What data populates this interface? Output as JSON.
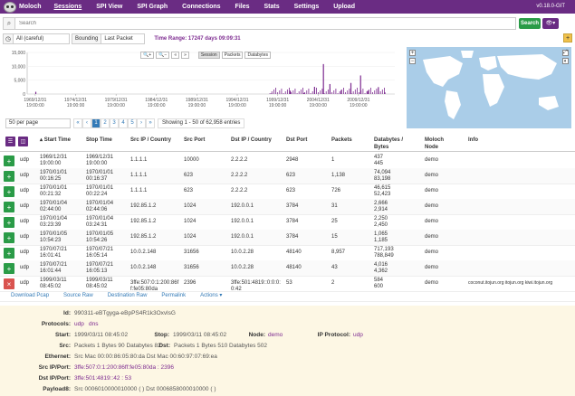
{
  "nav": {
    "brand": "Moloch",
    "items": [
      "Sessions",
      "SPI View",
      "SPI Graph",
      "Connections",
      "Files",
      "Stats",
      "Settings",
      "Upload"
    ],
    "active": "Sessions",
    "version": "v0.18.0-GIT"
  },
  "search": {
    "placeholder": "Search",
    "button": "Search"
  },
  "time": {
    "range_select": "All (careful)",
    "bounding_label": "Bounding",
    "bounding_select": "Last Packet",
    "range_text": "Time Range: 17247 days 09:09:31"
  },
  "graph": {
    "buttons": [
      "Session",
      "Packets",
      "Databytes"
    ],
    "active_button": "Session",
    "zoom_buttons": [
      "zoom-in",
      "zoom-out",
      "pan-left",
      "pan-right"
    ]
  },
  "chart_data": {
    "type": "bar",
    "y_ticks": [
      "15,000",
      "10,000",
      "5,000",
      "0"
    ],
    "x_ticks": [
      [
        "1969/12/31",
        "19:00:00"
      ],
      [
        "1974/12/31",
        "19:00:00"
      ],
      [
        "1979/12/31",
        "19:00:00"
      ],
      [
        "1984/12/31",
        "19:00:00"
      ],
      [
        "1989/12/31",
        "19:00:00"
      ],
      [
        "1994/12/31",
        "19:00:00"
      ],
      [
        "1999/12/31",
        "19:00:00"
      ],
      [
        "2004/12/31",
        "19:00:00"
      ],
      [
        "2009/12/31",
        "19:00:00"
      ]
    ],
    "ylim": [
      0,
      15000
    ],
    "bars": [
      {
        "x": 1970.0,
        "value": 800
      },
      {
        "x": 1999.2,
        "value": 300
      },
      {
        "x": 2001.5,
        "value": 1200
      },
      {
        "x": 2003.2,
        "value": 400
      },
      {
        "x": 2004.5,
        "value": 2600
      },
      {
        "x": 2005.6,
        "value": 10800
      },
      {
        "x": 2006.4,
        "value": 3600
      },
      {
        "x": 2007.8,
        "value": 1400
      },
      {
        "x": 2009.0,
        "value": 4000
      },
      {
        "x": 2010.2,
        "value": 6700
      },
      {
        "x": 2011.1,
        "value": 1200
      },
      {
        "x": 2012.4,
        "value": 2500
      },
      {
        "x": 2013.2,
        "value": 600
      }
    ]
  },
  "pager": {
    "per_page": "50 per page",
    "pages": [
      "«",
      "‹",
      "1",
      "2",
      "3",
      "4",
      "5",
      "›",
      "»"
    ],
    "active_page": "1",
    "info": "Showing 1 - 50 of 62,958 entries"
  },
  "table": {
    "columns": [
      "Start Time",
      "Stop Time",
      "Src IP / Country",
      "Src Port",
      "Dst IP / Country",
      "Dst Port",
      "Packets",
      "Databytes / Bytes",
      "Moloch Node",
      "Info"
    ],
    "rows": [
      {
        "proto": "udp",
        "start": [
          "1969/12/31",
          "19:00:00"
        ],
        "stop": [
          "1969/12/31",
          "19:00:00"
        ],
        "src": "1.1.1.1",
        "sport": "10000",
        "dst": "2.2.2.2",
        "dport": "2948",
        "packets": "1",
        "bytes": [
          "437",
          "445"
        ],
        "node": "demo",
        "info": ""
      },
      {
        "proto": "udp",
        "start": [
          "1970/01/01",
          "00:16:25"
        ],
        "stop": [
          "1970/01/01",
          "00:16:37"
        ],
        "src": "1.1.1.1",
        "sport": "623",
        "dst": "2.2.2.2",
        "dport": "623",
        "packets": "1,138",
        "bytes": [
          "74,094",
          "83,198"
        ],
        "node": "demo",
        "info": ""
      },
      {
        "proto": "udp",
        "start": [
          "1970/01/01",
          "00:21:32"
        ],
        "stop": [
          "1970/01/01",
          "00:22:24"
        ],
        "src": "1.1.1.1",
        "sport": "623",
        "dst": "2.2.2.2",
        "dport": "623",
        "packets": "726",
        "bytes": [
          "46,615",
          "52,423"
        ],
        "node": "demo",
        "info": ""
      },
      {
        "proto": "udp",
        "start": [
          "1970/01/04",
          "02:44:00"
        ],
        "stop": [
          "1970/01/04",
          "02:44:06"
        ],
        "src": "192.85.1.2",
        "sport": "1024",
        "dst": "192.0.0.1",
        "dport": "3784",
        "packets": "31",
        "bytes": [
          "2,666",
          "2,914"
        ],
        "node": "demo",
        "info": ""
      },
      {
        "proto": "udp",
        "start": [
          "1970/01/04",
          "03:23:39"
        ],
        "stop": [
          "1970/01/04",
          "03:24:31"
        ],
        "src": "192.85.1.2",
        "sport": "1024",
        "dst": "192.0.0.1",
        "dport": "3784",
        "packets": "25",
        "bytes": [
          "2,250",
          "2,450"
        ],
        "node": "demo",
        "info": ""
      },
      {
        "proto": "udp",
        "start": [
          "1970/01/05",
          "10:54:23"
        ],
        "stop": [
          "1970/01/05",
          "10:54:26"
        ],
        "src": "192.85.1.2",
        "sport": "1024",
        "dst": "192.0.0.1",
        "dport": "3784",
        "packets": "15",
        "bytes": [
          "1,065",
          "1,185"
        ],
        "node": "demo",
        "info": ""
      },
      {
        "proto": "udp",
        "start": [
          "1970/07/21",
          "16:01:41"
        ],
        "stop": [
          "1970/07/21",
          "16:05:14"
        ],
        "src": "10.0.2.148",
        "sport": "31656",
        "dst": "10.0.2.28",
        "dport": "48140",
        "packets": "8,957",
        "bytes": [
          "717,193",
          "788,849"
        ],
        "node": "demo",
        "info": ""
      },
      {
        "proto": "udp",
        "start": [
          "1970/07/21",
          "16:01:44"
        ],
        "stop": [
          "1970/07/21",
          "16:05:13"
        ],
        "src": "10.0.2.148",
        "sport": "31656",
        "dst": "10.0.2.28",
        "dport": "48140",
        "packets": "43",
        "bytes": [
          "4,016",
          "4,362"
        ],
        "node": "demo",
        "info": ""
      },
      {
        "proto": "udp",
        "start": [
          "1999/03/11",
          "08:45:02"
        ],
        "stop": [
          "1999/03/11",
          "08:45:02"
        ],
        "src": "3ffe:507:0:1:200:86ff:fe05:80da",
        "sport": "2396",
        "dst": "3ffe:501:4819::0:0:0:0:42",
        "dport": "53",
        "packets": "2",
        "bytes": [
          "584",
          "600"
        ],
        "node": "demo",
        "info": "coconut.itojun.org   itojun.org   kiwi.itojun.org"
      }
    ]
  },
  "actions": [
    "Download Pcap",
    "Source Raw",
    "Destination Raw",
    "Permalink",
    "Actions ▾"
  ],
  "detail": {
    "id_label": "Id:",
    "id": "990311-eBTgyga-eBpPS4R1k3OxvlsG",
    "protocols_label": "Protocols:",
    "protocols": [
      "udp",
      "dns"
    ],
    "start_label": "Start:",
    "start": "1999/03/11 08:45:02",
    "stop_label": "Stop:",
    "stop": "1999/03/11 08:45:02",
    "node_label": "Node:",
    "node": "demo",
    "ipproto_label": "IP Protocol:",
    "ipproto": "udp",
    "src_label": "Src:",
    "src_text": "Packets 1 Bytes 90 Databytes 82",
    "dst_label": "Dst:",
    "dst_text": "Packets 1 Bytes 510 Databytes 502",
    "eth_label": "Ethernet:",
    "eth": "Src Mac 00:00:86:05:80:da   Dst Mac 00:60:97:07:69:ea",
    "srcip_label": "Src IP/Port:",
    "srcip": "3ffe:507:0:1:200:86ff:fe05:80da : 2396",
    "dstip_label": "Dst IP/Port:",
    "dstip": "3ffe:501:4819::42 : 53",
    "payload_label": "Payload8:",
    "payload": "Src 0006010000010000 (  ) Dst 0006858000010000 (  )"
  }
}
